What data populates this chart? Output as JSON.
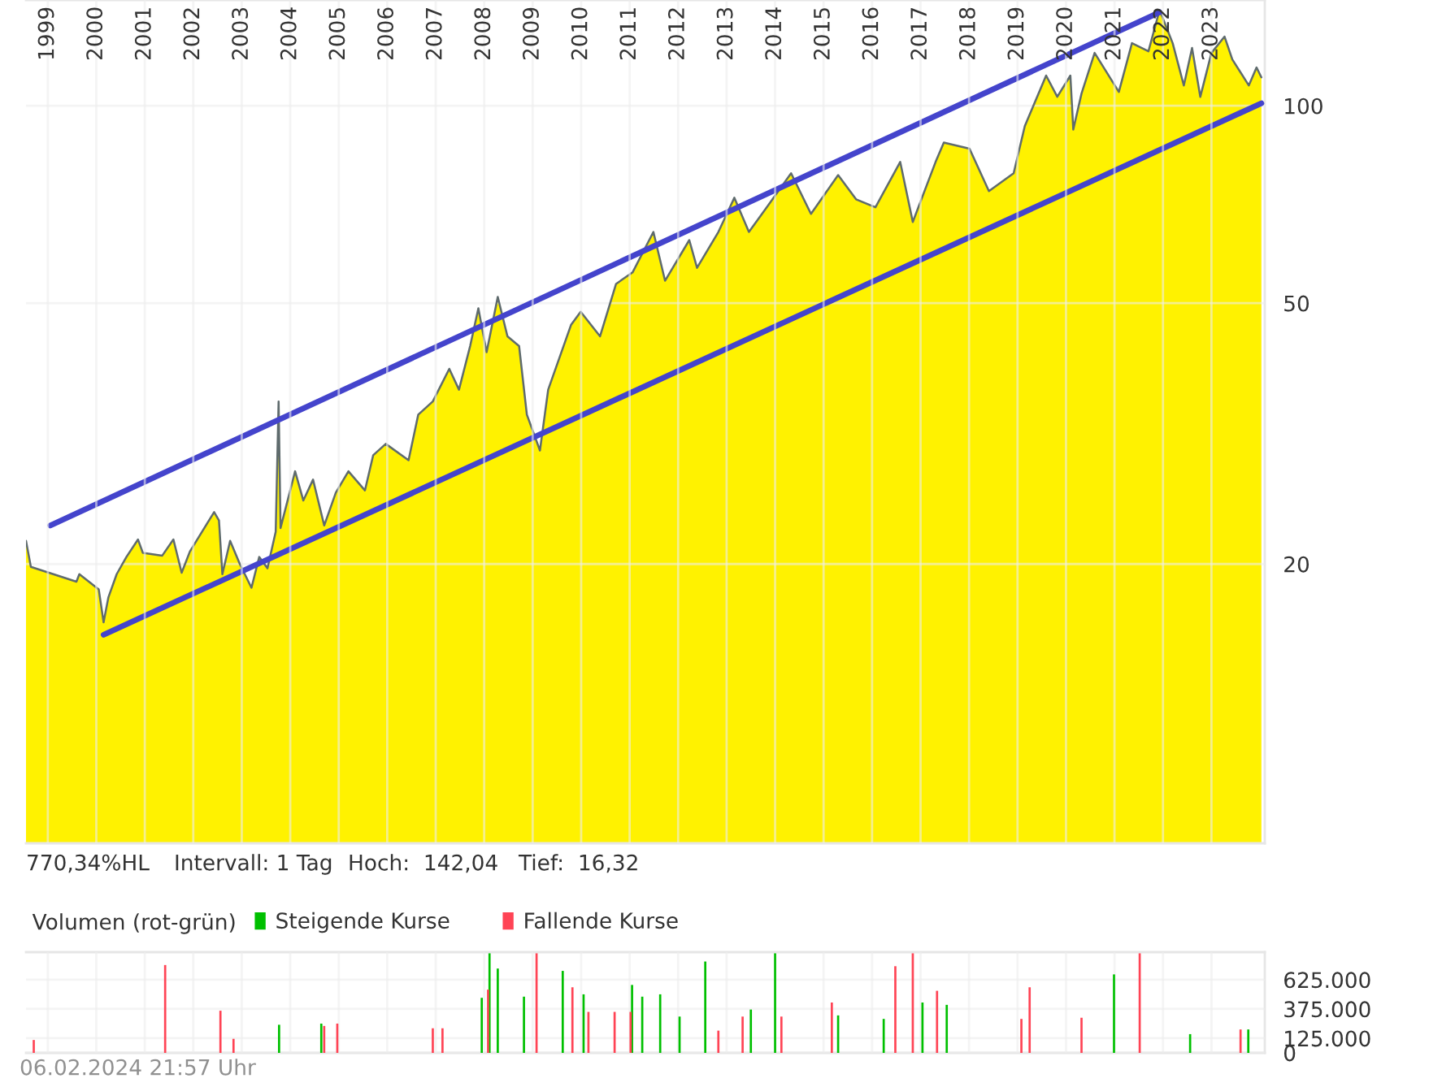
{
  "chart_data": [
    {
      "type": "area",
      "log": "y",
      "grid": true,
      "xlim": [
        1998.55,
        2024.1
      ],
      "ylim": [
        7.5,
        145
      ],
      "xticks": [
        1999,
        2000,
        2001,
        2002,
        2003,
        2004,
        2005,
        2006,
        2007,
        2008,
        2009,
        2010,
        2011,
        2012,
        2013,
        2014,
        2015,
        2016,
        2017,
        2018,
        2019,
        2020,
        2021,
        2022,
        2023
      ],
      "yticks": [
        20,
        50,
        100
      ],
      "annotations": [
        "770,34%HL",
        "Intervall: 1 Tag",
        "Hoch:  142,04",
        "Tief:  16,32",
        "06.02.2024 21:57 Uhr"
      ],
      "series": [
        {
          "type": "area",
          "color": "#fff200",
          "x": [
            1998.55,
            1998.65,
            1999.59,
            1999.65,
            2000.05,
            2000.15,
            2000.25,
            2000.42,
            2000.62,
            2000.86,
            2000.96,
            2001.36,
            2001.59,
            2001.76,
            2001.93,
            2002.43,
            2002.53,
            2002.6,
            2002.76,
            2002.96,
            2003.2,
            2003.36,
            2003.53,
            2003.7,
            2003.76,
            2003.8,
            2004.1,
            2004.27,
            2004.47,
            2004.7,
            2004.94,
            2005.2,
            2005.54,
            2005.71,
            2005.97,
            2006.44,
            2006.64,
            2006.94,
            2007.28,
            2007.48,
            2007.71,
            2007.88,
            2008.05,
            2008.28,
            2008.48,
            2008.72,
            2008.88,
            2009.15,
            2009.32,
            2009.79,
            2009.99,
            2010.39,
            2010.72,
            2011.06,
            2011.49,
            2011.73,
            2012.23,
            2012.39,
            2012.83,
            2013.16,
            2013.46,
            2013.73,
            2014.33,
            2014.74,
            2015.3,
            2015.67,
            2016.07,
            2016.58,
            2016.84,
            2017.31,
            2017.48,
            2018.01,
            2018.41,
            2018.92,
            2019.15,
            2019.59,
            2019.82,
            2020.09,
            2020.15,
            2020.32,
            2020.59,
            2021.09,
            2021.36,
            2021.7,
            2021.93,
            2022.2,
            2022.43,
            2022.6,
            2022.77,
            2023.0,
            2023.27,
            2023.43,
            2023.77,
            2023.93,
            2024.03
          ],
          "values": [
            21.7,
            19.8,
            18.8,
            19.3,
            18.3,
            16.3,
            17.8,
            19.3,
            20.5,
            21.8,
            20.8,
            20.6,
            21.8,
            19.4,
            20.9,
            24.0,
            23.3,
            19.3,
            21.7,
            20.0,
            18.4,
            20.5,
            19.7,
            22.4,
            35.4,
            22.7,
            27.7,
            25.0,
            26.9,
            22.9,
            25.7,
            27.7,
            25.9,
            29.3,
            30.5,
            28.8,
            33.8,
            35.4,
            39.7,
            36.9,
            43.0,
            49.1,
            42.1,
            51.1,
            44.5,
            43.0,
            33.8,
            29.8,
            36.9,
            46.3,
            48.5,
            44.5,
            53.5,
            55.7,
            64.2,
            54.1,
            62.4,
            56.6,
            64.2,
            72.4,
            64.2,
            68.4,
            78.9,
            68.4,
            78.4,
            72.0,
            70.0,
            82.1,
            66.5,
            82.1,
            87.9,
            86.0,
            74.1,
            78.9,
            93.1,
            111.2,
            103.2,
            111.2,
            92.0,
            104.4,
            120.4,
            105.0,
            124.6,
            121.1,
            140.0,
            124.6,
            107.4,
            122.5,
            103.2,
            120.4,
            127.5,
            117.7,
            107.4,
            114.4,
            110.5
          ]
        },
        {
          "type": "line",
          "color": "#4444cc",
          "x": [
            1999.05,
            2021.93
          ],
          "values": [
            22.9,
            138.9
          ]
        },
        {
          "type": "line",
          "color": "#4444cc",
          "x": [
            2000.15,
            2024.03
          ],
          "values": [
            15.6,
            100.9
          ]
        }
      ]
    },
    {
      "type": "bar",
      "title": "Volumen (rot-grün)",
      "legend": "top left",
      "grid": true,
      "tick_labels": "y",
      "xlim": [
        1998.55,
        2024.1
      ],
      "ylim": [
        0,
        860000
      ],
      "xticks": [
        1999,
        2000,
        2001,
        2002,
        2003,
        2004,
        2005,
        2006,
        2007,
        2008,
        2009,
        2010,
        2011,
        2012,
        2013,
        2014,
        2015,
        2016,
        2017,
        2018,
        2019,
        2020,
        2021,
        2022,
        2023
      ],
      "yticks": [
        0,
        {
          "value": 125000,
          "label": "125.000"
        },
        {
          "value": 375000,
          "label": "375.000"
        },
        {
          "value": 625000,
          "label": "625.000"
        }
      ],
      "series": [
        {
          "name": "Steigende Kurse",
          "color": "#00c000",
          "x": [
            2003.77,
            2004.64,
            2007.95,
            2008.11,
            2008.28,
            2008.82,
            2009.62,
            2010.05,
            2011.05,
            2011.26,
            2011.63,
            2012.03,
            2012.56,
            2013.5,
            2014.0,
            2015.3,
            2016.24,
            2017.04,
            2017.54,
            2020.99,
            2022.56,
            2023.76
          ],
          "values": [
            240000,
            250000,
            470000,
            850000,
            720000,
            480000,
            700000,
            500000,
            580000,
            480000,
            500000,
            310000,
            780000,
            370000,
            850000,
            320000,
            290000,
            430000,
            410000,
            670000,
            160000,
            200000
          ]
        },
        {
          "name": "Fallende Kurse",
          "color": "#ff4455",
          "x": [
            1998.71,
            2001.42,
            2002.56,
            2002.83,
            2004.7,
            2004.97,
            2006.94,
            2007.14,
            2008.08,
            2009.08,
            2009.82,
            2010.15,
            2010.69,
            2011.02,
            2012.83,
            2013.33,
            2014.13,
            2015.17,
            2016.48,
            2016.84,
            2017.34,
            2019.08,
            2019.25,
            2020.32,
            2021.52,
            2023.6
          ],
          "values": [
            110000,
            750000,
            360000,
            120000,
            230000,
            250000,
            210000,
            210000,
            540000,
            850000,
            560000,
            350000,
            350000,
            350000,
            190000,
            310000,
            310000,
            430000,
            740000,
            850000,
            530000,
            290000,
            560000,
            300000,
            850000,
            200000
          ]
        }
      ]
    }
  ]
}
